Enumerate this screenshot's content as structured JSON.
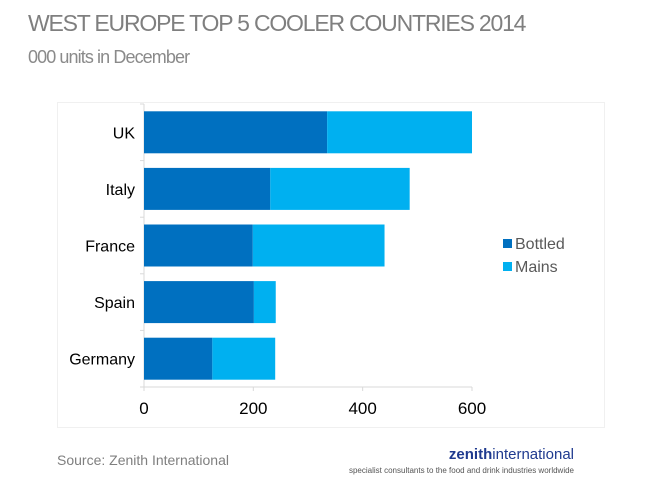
{
  "title": "WEST EUROPE TOP 5 COOLER COUNTRIES 2014",
  "subtitle": "000 units in December",
  "source": "Source: Zenith International",
  "brand": {
    "bold": "zenith",
    "regular": "international",
    "tagline": "specialist consultants to the food and drink industries worldwide"
  },
  "chart_data": {
    "type": "bar",
    "orientation": "horizontal",
    "stacked": true,
    "categories": [
      "UK",
      "Italy",
      "France",
      "Spain",
      "Germany"
    ],
    "series": [
      {
        "name": "Bottled",
        "values": [
          335,
          231,
          199,
          201,
          125
        ],
        "color": "#0070c0"
      },
      {
        "name": "Mains",
        "values": [
          265,
          255,
          241,
          40,
          115
        ],
        "color": "#00b0f0"
      }
    ],
    "xlim": [
      0,
      600
    ],
    "xticks": [
      "0",
      "200",
      "400",
      "600"
    ],
    "grid": false,
    "legend": "right"
  }
}
